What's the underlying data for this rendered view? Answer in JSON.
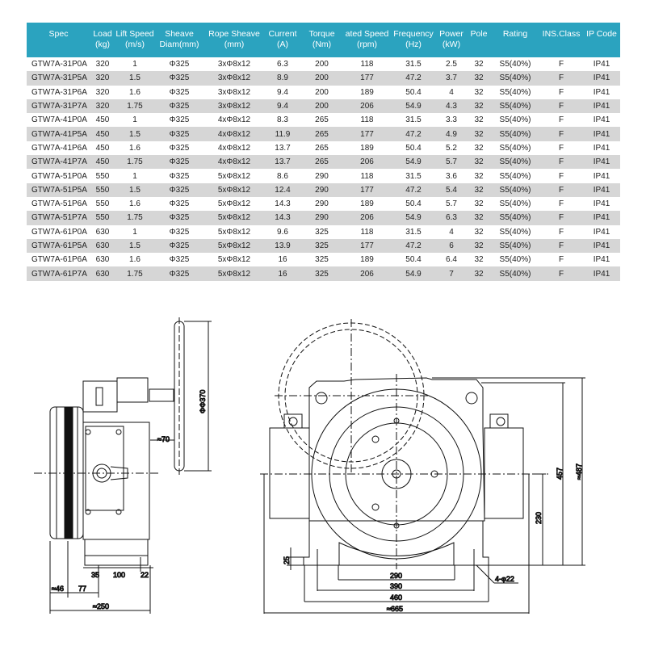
{
  "header_color": "#2ba3bf",
  "table": {
    "columns": [
      [
        "Spec",
        ""
      ],
      [
        "Load",
        "(kg)"
      ],
      [
        "Lift Speed",
        "(m/s)"
      ],
      [
        "Sheave",
        "Diam(mm)"
      ],
      [
        "Rope Sheave",
        "(mm)"
      ],
      [
        "Current",
        "(A)"
      ],
      [
        "Torque",
        "(Nm)"
      ],
      [
        "ated Speed",
        "(rpm)"
      ],
      [
        "Frequency",
        "(Hz)"
      ],
      [
        "Power",
        "(kW)"
      ],
      [
        "Pole",
        ""
      ],
      [
        "Rating",
        ""
      ],
      [
        "INS.Class",
        ""
      ],
      [
        "IP Code",
        ""
      ]
    ],
    "rows": [
      [
        "GTW7A-31P0A",
        "320",
        "1",
        "Φ325",
        "3xΦ8x12",
        "6.3",
        "200",
        "118",
        "31.5",
        "2.5",
        "32",
        "S5(40%)",
        "F",
        "IP41"
      ],
      [
        "GTW7A-31P5A",
        "320",
        "1.5",
        "Φ325",
        "3xΦ8x12",
        "8.9",
        "200",
        "177",
        "47.2",
        "3.7",
        "32",
        "S5(40%)",
        "F",
        "IP41"
      ],
      [
        "GTW7A-31P6A",
        "320",
        "1.6",
        "Φ325",
        "3xΦ8x12",
        "9.4",
        "200",
        "189",
        "50.4",
        "4",
        "32",
        "S5(40%)",
        "F",
        "IP41"
      ],
      [
        "GTW7A-31P7A",
        "320",
        "1.75",
        "Φ325",
        "3xΦ8x12",
        "9.4",
        "200",
        "206",
        "54.9",
        "4.3",
        "32",
        "S5(40%)",
        "F",
        "IP41"
      ],
      [
        "GTW7A-41P0A",
        "450",
        "1",
        "Φ325",
        "4xΦ8x12",
        "8.3",
        "265",
        "118",
        "31.5",
        "3.3",
        "32",
        "S5(40%)",
        "F",
        "IP41"
      ],
      [
        "GTW7A-41P5A",
        "450",
        "1.5",
        "Φ325",
        "4xΦ8x12",
        "11.9",
        "265",
        "177",
        "47.2",
        "4.9",
        "32",
        "S5(40%)",
        "F",
        "IP41"
      ],
      [
        "GTW7A-41P6A",
        "450",
        "1.6",
        "Φ325",
        "4xΦ8x12",
        "13.7",
        "265",
        "189",
        "50.4",
        "5.2",
        "32",
        "S5(40%)",
        "F",
        "IP41"
      ],
      [
        "GTW7A-41P7A",
        "450",
        "1.75",
        "Φ325",
        "4xΦ8x12",
        "13.7",
        "265",
        "206",
        "54.9",
        "5.7",
        "32",
        "S5(40%)",
        "F",
        "IP41"
      ],
      [
        "GTW7A-51P0A",
        "550",
        "1",
        "Φ325",
        "5xΦ8x12",
        "8.6",
        "290",
        "118",
        "31.5",
        "3.6",
        "32",
        "S5(40%)",
        "F",
        "IP41"
      ],
      [
        "GTW7A-51P5A",
        "550",
        "1.5",
        "Φ325",
        "5xΦ8x12",
        "12.4",
        "290",
        "177",
        "47.2",
        "5.4",
        "32",
        "S5(40%)",
        "F",
        "IP41"
      ],
      [
        "GTW7A-51P6A",
        "550",
        "1.6",
        "Φ325",
        "5xΦ8x12",
        "14.3",
        "290",
        "189",
        "50.4",
        "5.7",
        "32",
        "S5(40%)",
        "F",
        "IP41"
      ],
      [
        "GTW7A-51P7A",
        "550",
        "1.75",
        "Φ325",
        "5xΦ8x12",
        "14.3",
        "290",
        "206",
        "54.9",
        "6.3",
        "32",
        "S5(40%)",
        "F",
        "IP41"
      ],
      [
        "GTW7A-61P0A",
        "630",
        "1",
        "Φ325",
        "5xΦ8x12",
        "9.6",
        "325",
        "118",
        "31.5",
        "4",
        "32",
        "S5(40%)",
        "F",
        "IP41"
      ],
      [
        "GTW7A-61P5A",
        "630",
        "1.5",
        "Φ325",
        "5xΦ8x12",
        "13.9",
        "325",
        "177",
        "47.2",
        "6",
        "32",
        "S5(40%)",
        "F",
        "IP41"
      ],
      [
        "GTW7A-61P6A",
        "630",
        "1.6",
        "Φ325",
        "5xΦ8x12",
        "16",
        "325",
        "189",
        "50.4",
        "6.4",
        "32",
        "S5(40%)",
        "F",
        "IP41"
      ],
      [
        "GTW7A-61P7A",
        "630",
        "1.75",
        "Φ325",
        "5xΦ8x12",
        "16",
        "325",
        "206",
        "54.9",
        "7",
        "32",
        "S5(40%)",
        "F",
        "IP41"
      ]
    ]
  },
  "side_view": {
    "dim_35": "35",
    "dim_100": "100",
    "dim_22": "22",
    "dim_46": "≈46",
    "dim_77": "77",
    "dim_250": "≈250",
    "dim_70": "≈70",
    "dim_370": "ΦΦ370"
  },
  "front_view": {
    "dim_290": "290",
    "dim_390": "390",
    "dim_460": "460",
    "dim_665": "≈665",
    "dim_457": "457",
    "dim_487": "≈487",
    "dim_230": "230",
    "dim_25": "25",
    "holes": "4-φ22"
  }
}
